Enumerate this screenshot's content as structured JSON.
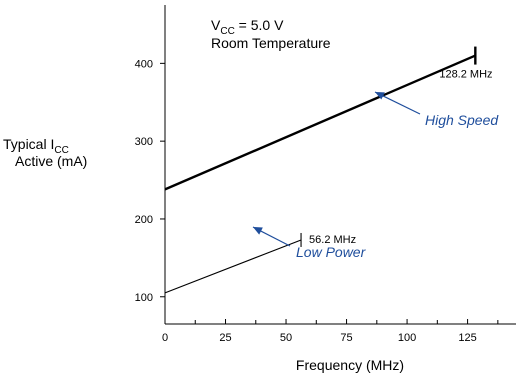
{
  "chart_data": {
    "type": "line",
    "xlabel": "Frequency (MHz)",
    "ylabel": {
      "main": "Typical I",
      "sub": "CC",
      "line2": "Active (mA)"
    },
    "xlim": [
      0,
      145
    ],
    "ylim": [
      65,
      475
    ],
    "x_ticks": [
      0,
      25,
      50,
      75,
      100,
      125
    ],
    "y_ticks": [
      100,
      200,
      300,
      400
    ],
    "grid": false,
    "conditions": {
      "vcc_main": "V",
      "vcc_sub": "CC",
      "vcc_rest": " = 5.0 V",
      "line2": "Room Temperature"
    },
    "series": [
      {
        "name": "High Speed",
        "x": [
          0,
          128.2
        ],
        "y": [
          238,
          410
        ],
        "end_label": "128.2 MHz",
        "color": "#000000"
      },
      {
        "name": "Low Power",
        "x": [
          0,
          56.2
        ],
        "y": [
          105,
          173
        ],
        "end_label": "56.2 MHz",
        "color": "#000000"
      }
    ],
    "callout_color": "#1f4e9c"
  }
}
